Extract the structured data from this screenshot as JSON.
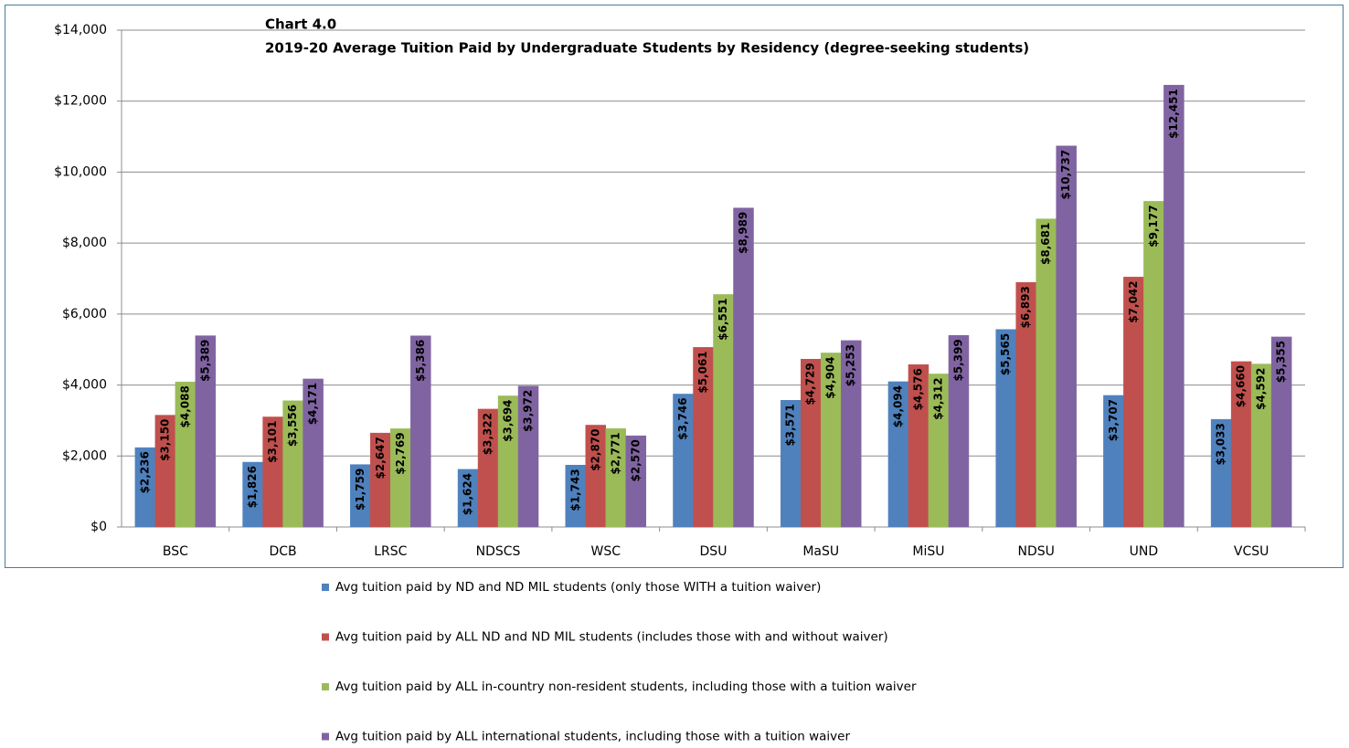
{
  "chart_data": {
    "type": "bar",
    "title": "Chart 4.0",
    "subtitle": "2019-20 Average Tuition Paid by Undergraduate Students by Residency (degree-seeking students)",
    "categories": [
      "BSC",
      "DCB",
      "LRSC",
      "NDSCS",
      "WSC",
      "DSU",
      "MaSU",
      "MiSU",
      "NDSU",
      "UND",
      "VCSU"
    ],
    "series": [
      {
        "name": "Avg tuition paid by ND and ND MIL students (only those WITH a tuition waiver)",
        "color": "#4f81bd",
        "values": [
          2236,
          1826,
          1759,
          1624,
          1743,
          3746,
          3571,
          4094,
          5565,
          3707,
          3033
        ],
        "value_labels": [
          "$2,236",
          "$1,826",
          "$1,759",
          "$1,624",
          "$1,743",
          "$3,746",
          "$3,571",
          "$4,094",
          "$5,565",
          "$3,707",
          "$3,033"
        ]
      },
      {
        "name": "Avg tuition paid by ALL ND and ND MIL students (includes those with and without waiver)",
        "color": "#c0504d",
        "values": [
          3150,
          3101,
          2647,
          3322,
          2870,
          5061,
          4729,
          4576,
          6893,
          7042,
          4660
        ],
        "value_labels": [
          "$3,150",
          "$3,101",
          "$2,647",
          "$3,322",
          "$2,870",
          "$5,061",
          "$4,729",
          "$4,576",
          "$6,893",
          "$7,042",
          "$4,660"
        ]
      },
      {
        "name": "Avg tuition paid by ALL in-country non-resident students, including those with a tuition waiver",
        "color": "#9bbb59",
        "values": [
          4088,
          3556,
          2769,
          3694,
          2771,
          6551,
          4904,
          4312,
          8681,
          9177,
          4592
        ],
        "value_labels": [
          "$4,088",
          "$3,556",
          "$2,769",
          "$3,694",
          "$2,771",
          "$6,551",
          "$4,904",
          "$4,312",
          "$8,681",
          "$9,177",
          "$4,592"
        ]
      },
      {
        "name": "Avg tuition paid by ALL international students, including those with a tuition waiver",
        "color": "#8064a2",
        "values": [
          5389,
          4171,
          5386,
          3972,
          2570,
          8989,
          5253,
          5399,
          10737,
          12451,
          5355
        ],
        "value_labels": [
          "$5,389",
          "$4,171",
          "$5,386",
          "$3,972",
          "$2,570",
          "$8,989",
          "$5,253",
          "$5,399",
          "$10,737",
          "$12,451",
          "$5,355"
        ]
      }
    ],
    "ylim": [
      0,
      14000
    ],
    "yticks": [
      {
        "value": 0,
        "label": "$0"
      },
      {
        "value": 2000,
        "label": "$2,000"
      },
      {
        "value": 4000,
        "label": "$4,000"
      },
      {
        "value": 6000,
        "label": "$6,000"
      },
      {
        "value": 8000,
        "label": "$8,000"
      },
      {
        "value": 10000,
        "label": "$10,000"
      },
      {
        "value": 12000,
        "label": "$12,000"
      },
      {
        "value": 14000,
        "label": "$14,000"
      }
    ],
    "grid": true,
    "legend": "bottom"
  }
}
